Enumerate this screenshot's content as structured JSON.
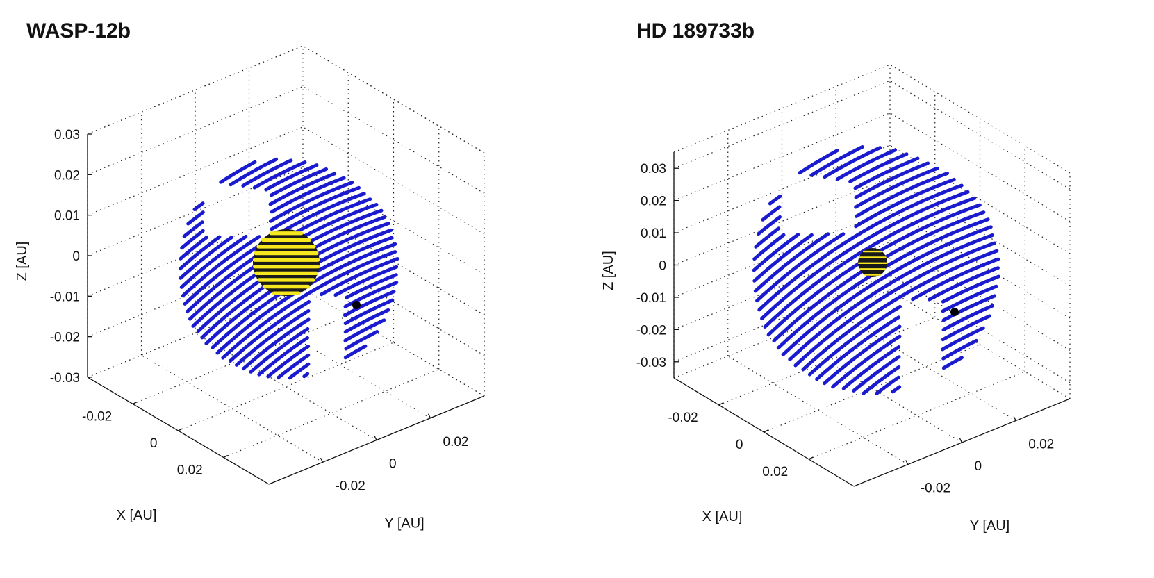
{
  "chart_data": [
    {
      "type": "scatter",
      "title": "WASP-12b",
      "xlabel": "X [AU]",
      "ylabel": "Y [AU]",
      "zlabel": "Z [AU]",
      "x_ticks": [
        "-0.02",
        "0",
        "0.02"
      ],
      "y_ticks": [
        "-0.02",
        "0",
        "0.02"
      ],
      "z_ticks": [
        "0.03",
        "0.02",
        "0.01",
        "0",
        "-0.01",
        "-0.02",
        "-0.03"
      ],
      "zlim": [
        -0.03,
        0.03
      ],
      "grid": true,
      "projection": "3d",
      "series": [
        {
          "shell_radius_au": 0.027,
          "color": "#1a1acf"
        },
        {
          "star_radius_au": 0.0085,
          "color": "#f5e61e"
        },
        {
          "planet_marker": "dot",
          "color": "#000000"
        }
      ]
    },
    {
      "type": "scatter",
      "title": "HD 189733b",
      "xlabel": "X [AU]",
      "ylabel": "Y [AU]",
      "zlabel": "Z [AU]",
      "x_ticks": [
        "-0.02",
        "0",
        "0.02"
      ],
      "y_ticks": [
        "-0.02",
        "0",
        "0.02"
      ],
      "z_ticks": [
        "0.03",
        "0.02",
        "0.01",
        "0",
        "-0.01",
        "-0.02",
        "-0.03"
      ],
      "zlim": [
        -0.035,
        0.035
      ],
      "grid": true,
      "projection": "3d",
      "series": [
        {
          "shell_radius_au": 0.031,
          "color": "#1a1acf"
        },
        {
          "star_radius_au": 0.0035,
          "color": "#f5e61e"
        },
        {
          "planet_marker": "dot",
          "color": "#000000"
        }
      ]
    }
  ]
}
